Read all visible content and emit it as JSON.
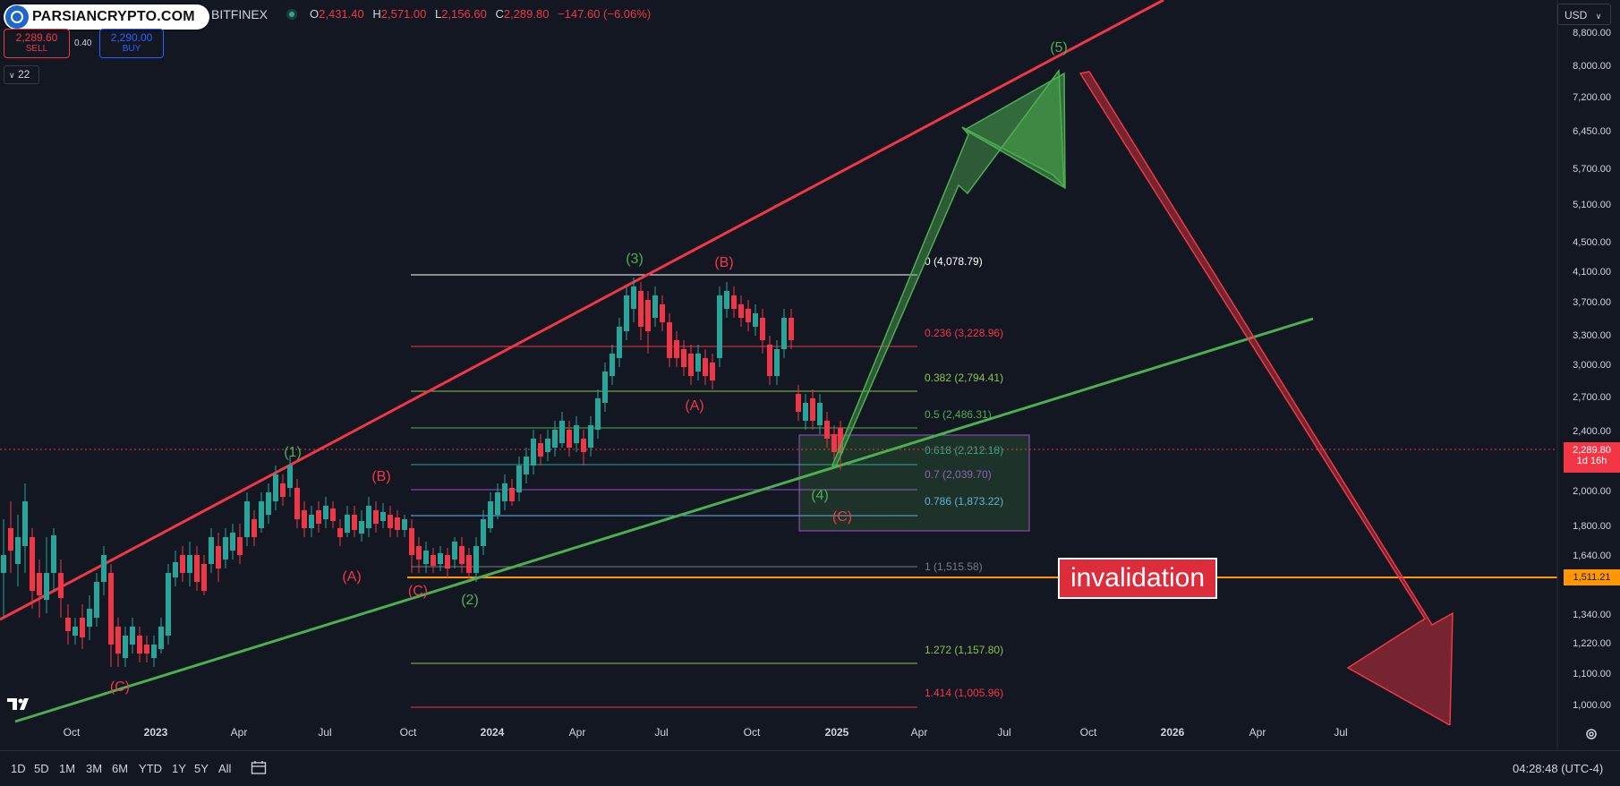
{
  "header": {
    "logo_text": "PARSIANCRYPTO.COM",
    "exchange": "BITFINEX",
    "ohlc": {
      "o_label": "O",
      "o": "2,431.40",
      "h_label": "H",
      "h": "2,571.00",
      "l_label": "L",
      "l": "2,156.60",
      "c_label": "C",
      "c": "2,289.80",
      "change": "−147.60 (−6.06%)"
    },
    "sell_price": "2,289.60",
    "sell_label": "SELL",
    "spread": "0.40",
    "buy_price": "2,290.00",
    "buy_label": "BUY",
    "indicator_count": "22",
    "currency": "USD"
  },
  "colors": {
    "background": "#131722",
    "up": "#26a69a",
    "down": "#f23645",
    "channel_top": "#f23645",
    "channel_bottom": "#4caf50",
    "invalidation_line": "#ff9800"
  },
  "chart_data": {
    "type": "candlestick",
    "price_axis_labels": [
      "8,800.00",
      "8,000.00",
      "7,200.00",
      "6,450.00",
      "5,700.00",
      "5,100.00",
      "4,500.00",
      "4,100.00",
      "3,700.00",
      "3,300.00",
      "3,000.00",
      "2,700.00",
      "2,400.00",
      "2,000.00",
      "1,800.00",
      "1,640.00",
      "1,340.00",
      "1,220.00",
      "1,100.00",
      "1,000.00"
    ],
    "time_axis_labels": [
      "Oct",
      "2023",
      "Apr",
      "Jul",
      "Oct",
      "2024",
      "Apr",
      "Jul",
      "Oct",
      "2025",
      "Apr",
      "Jul",
      "Oct",
      "2026",
      "Apr",
      "Jul"
    ],
    "current_price": "2,289.80",
    "countdown": "1d 16h",
    "invalidation_price": "1,511.21",
    "scale": "log",
    "fibonacci": [
      {
        "ratio": "0",
        "value": "(4,078.79)",
        "color": "#ffffff"
      },
      {
        "ratio": "0.236",
        "value": "(3,228.96)",
        "color": "#f23645"
      },
      {
        "ratio": "0.382",
        "value": "(2,794.41)",
        "color": "#8bc34a"
      },
      {
        "ratio": "0.5",
        "value": "(2,486.31)",
        "color": "#4caf50"
      },
      {
        "ratio": "0.618",
        "value": "(2,212.18)",
        "color": "#26a69a"
      },
      {
        "ratio": "0.7",
        "value": "(2,039.70)",
        "color": "#9c4fd0"
      },
      {
        "ratio": "0.786",
        "value": "(1,873.22)",
        "color": "#64b5f6"
      },
      {
        "ratio": "1",
        "value": "(1,515.58)",
        "color": "#787b86"
      },
      {
        "ratio": "1.272",
        "value": "(1,157.80)",
        "color": "#8bc34a"
      },
      {
        "ratio": "1.414",
        "value": "(1,005.96)",
        "color": "#f23645"
      }
    ],
    "wave_labels": [
      {
        "text": "(1)",
        "color": "green"
      },
      {
        "text": "(2)",
        "color": "green"
      },
      {
        "text": "(3)",
        "color": "green"
      },
      {
        "text": "(4)",
        "color": "green"
      },
      {
        "text": "(5)",
        "color": "green"
      },
      {
        "text": "(A)",
        "color": "red"
      },
      {
        "text": "(B)",
        "color": "red"
      },
      {
        "text": "(C)",
        "color": "red"
      },
      {
        "text": "(A)",
        "color": "red"
      },
      {
        "text": "(B)",
        "color": "red"
      },
      {
        "text": "(C)",
        "color": "red"
      },
      {
        "text": "(A)",
        "color": "red"
      },
      {
        "text": "(B)",
        "color": "red"
      },
      {
        "text": "(C)",
        "color": "red"
      }
    ],
    "annotation": "invalidation"
  },
  "bottom_bar": {
    "ranges": [
      "1D",
      "5D",
      "1M",
      "3M",
      "6M",
      "YTD",
      "1Y",
      "5Y",
      "All"
    ],
    "clock": "04:28:48 (UTC-4)"
  }
}
